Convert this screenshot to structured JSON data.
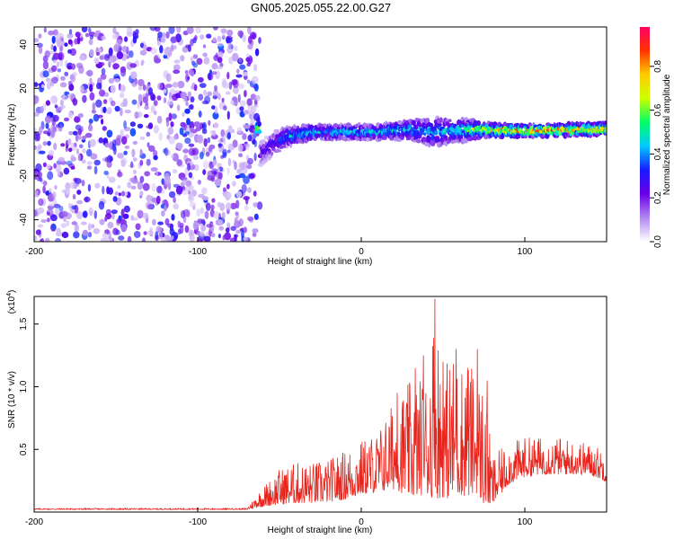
{
  "title": "GN05.2025.055.22.00.G27",
  "chart_data": [
    {
      "type": "heatmap",
      "xlabel": "Height of straight line (km)",
      "ylabel": "Frequency (Hz)",
      "xlim": [
        -200,
        150
      ],
      "ylim": [
        -50,
        48
      ],
      "x_ticks": [
        -200,
        -100,
        0,
        100
      ],
      "y_ticks": [
        -40,
        -20,
        0,
        20,
        40
      ],
      "colorbar": {
        "label": "Normalized spectral amplitude",
        "range": [
          0,
          0.98
        ],
        "ticks": [
          "0.0",
          "0.2",
          "0.4",
          "0.6",
          "0.8"
        ],
        "tick_values": [
          0,
          0.2,
          0.4,
          0.6,
          0.8
        ],
        "colors": [
          "#ffffff",
          "#b089f0",
          "#6a00e8",
          "#1a1aff",
          "#00c8ff",
          "#00ff66",
          "#ccff00",
          "#ffcc00",
          "#ff3300",
          "#ff0066"
        ]
      },
      "regions": [
        {
          "x_range": [
            -200,
            -62
          ],
          "description_key": "broadband noise",
          "freq_range": [
            -50,
            48
          ],
          "amplitude": 0.15
        },
        {
          "x_range": [
            -62,
            150
          ],
          "description_key": "signal band near 0 Hz",
          "freq_range": [
            -15,
            8
          ],
          "amplitude_peak": 0.95
        }
      ],
      "signal_track": [
        {
          "x": -62,
          "center": -10,
          "width": 5,
          "amp": 0.25
        },
        {
          "x": -55,
          "center": -6,
          "width": 5,
          "amp": 0.35
        },
        {
          "x": -45,
          "center": -2,
          "width": 4,
          "amp": 0.5
        },
        {
          "x": -30,
          "center": 0,
          "width": 3,
          "amp": 0.55
        },
        {
          "x": -10,
          "center": 0,
          "width": 3,
          "amp": 0.55
        },
        {
          "x": 10,
          "center": 0,
          "width": 3,
          "amp": 0.55
        },
        {
          "x": 30,
          "center": 1,
          "width": 4,
          "amp": 0.55
        },
        {
          "x": 45,
          "center": 0,
          "width": 6,
          "amp": 0.5
        },
        {
          "x": 60,
          "center": 1,
          "width": 5,
          "amp": 0.55
        },
        {
          "x": 75,
          "center": 1,
          "width": 3,
          "amp": 0.85
        },
        {
          "x": 100,
          "center": 0.5,
          "width": 2.5,
          "amp": 0.95
        },
        {
          "x": 125,
          "center": 1,
          "width": 2.5,
          "amp": 0.95
        },
        {
          "x": 150,
          "center": 1.5,
          "width": 2.5,
          "amp": 0.95
        }
      ]
    },
    {
      "type": "line",
      "xlabel": "Height of straight line (km)",
      "ylabel": "SNR (10 * v/v)",
      "y_multiplier": "(x10",
      "y_multiplier_exp": "4",
      "xlim": [
        -200,
        150
      ],
      "ylim": [
        0,
        1.72
      ],
      "x_ticks": [
        -200,
        -100,
        0,
        100
      ],
      "y_ticks": [
        "0.5",
        "1.0",
        "1.5"
      ],
      "y_tick_values": [
        0.5,
        1.0,
        1.5
      ],
      "line_color": "#e8241c",
      "envelope": {
        "x": [
          -200,
          -70,
          -62,
          -50,
          -40,
          -30,
          -20,
          -10,
          0,
          10,
          20,
          30,
          40,
          45,
          50,
          55,
          60,
          65,
          70,
          75,
          80,
          90,
          100,
          110,
          120,
          130,
          140,
          150
        ],
        "base": [
          0.02,
          0.02,
          0.04,
          0.06,
          0.07,
          0.07,
          0.08,
          0.1,
          0.14,
          0.16,
          0.18,
          0.12,
          0.14,
          0.1,
          0.12,
          0.1,
          0.14,
          0.12,
          0.16,
          0.06,
          0.05,
          0.22,
          0.28,
          0.3,
          0.3,
          0.3,
          0.3,
          0.24
        ],
        "peak": [
          0.03,
          0.03,
          0.18,
          0.35,
          0.4,
          0.4,
          0.42,
          0.5,
          0.58,
          0.65,
          0.9,
          1.05,
          1.1,
          1.7,
          1.15,
          1.3,
          1.2,
          1.25,
          1.1,
          1.05,
          0.45,
          0.55,
          0.6,
          0.6,
          0.6,
          0.58,
          0.55,
          0.5
        ]
      },
      "spikes": [
        {
          "x": 45,
          "y": 1.7
        },
        {
          "x": 33,
          "y": 1.15
        },
        {
          "x": 38,
          "y": 1.25
        },
        {
          "x": 58,
          "y": 1.3
        },
        {
          "x": 71,
          "y": 1.3
        },
        {
          "x": 65,
          "y": 1.15
        },
        {
          "x": 50,
          "y": 1.2
        },
        {
          "x": 77,
          "y": 1.05
        },
        {
          "x": 22,
          "y": 0.95
        },
        {
          "x": 28,
          "y": 0.85
        }
      ]
    }
  ]
}
